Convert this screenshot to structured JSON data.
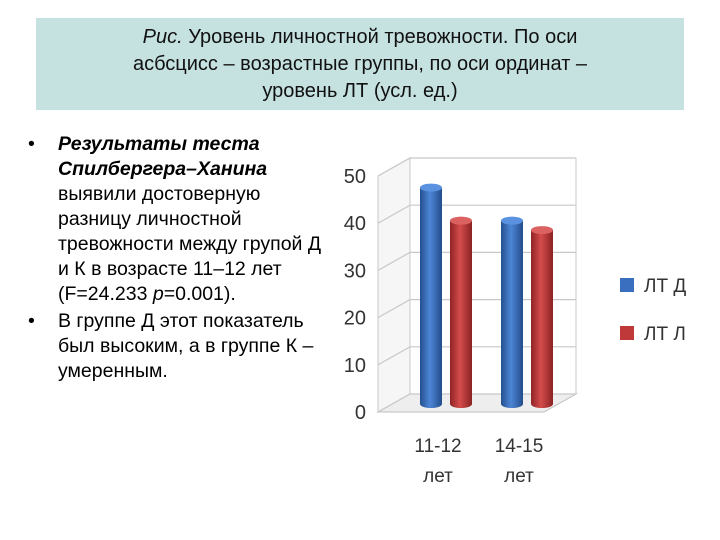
{
  "caption": {
    "prefix": "Рис.",
    "line1": " Уровень личностной тревожности. По оси",
    "line2": "асбсцисс – возрастные группы, по оси ординат –",
    "line3": "уровень ЛТ (усл. ед.)"
  },
  "bullets": [
    {
      "bullet_char": "•",
      "bold_italic": "Результаты теста Спилбергера–Ханина",
      "text1": " выявили достоверную разницу личностной тревожности между групой Д и К в возрасте 11–12 лет (F=24.233 ",
      "italic_p": "p",
      "text2": "=0.001)."
    },
    {
      "bullet_char": "•",
      "text": "В группе Д этот показатель был высоким, а в группе К – умеренным."
    }
  ],
  "chart_data": {
    "type": "bar",
    "categories": [
      [
        "11-12",
        "лет"
      ],
      [
        "14-15",
        "лет"
      ]
    ],
    "series": [
      {
        "name": "ЛТ Д",
        "values": [
          45,
          38
        ],
        "color": "#3a6fc0"
      },
      {
        "name": "ЛТ Л",
        "values": [
          38,
          36
        ],
        "color": "#c0393a"
      }
    ],
    "yticks": [
      "0",
      "10",
      "20",
      "30",
      "40",
      "50"
    ],
    "ylim": [
      0,
      50
    ],
    "grid": true,
    "legend_position": "right",
    "style": "3d-cylinder"
  }
}
